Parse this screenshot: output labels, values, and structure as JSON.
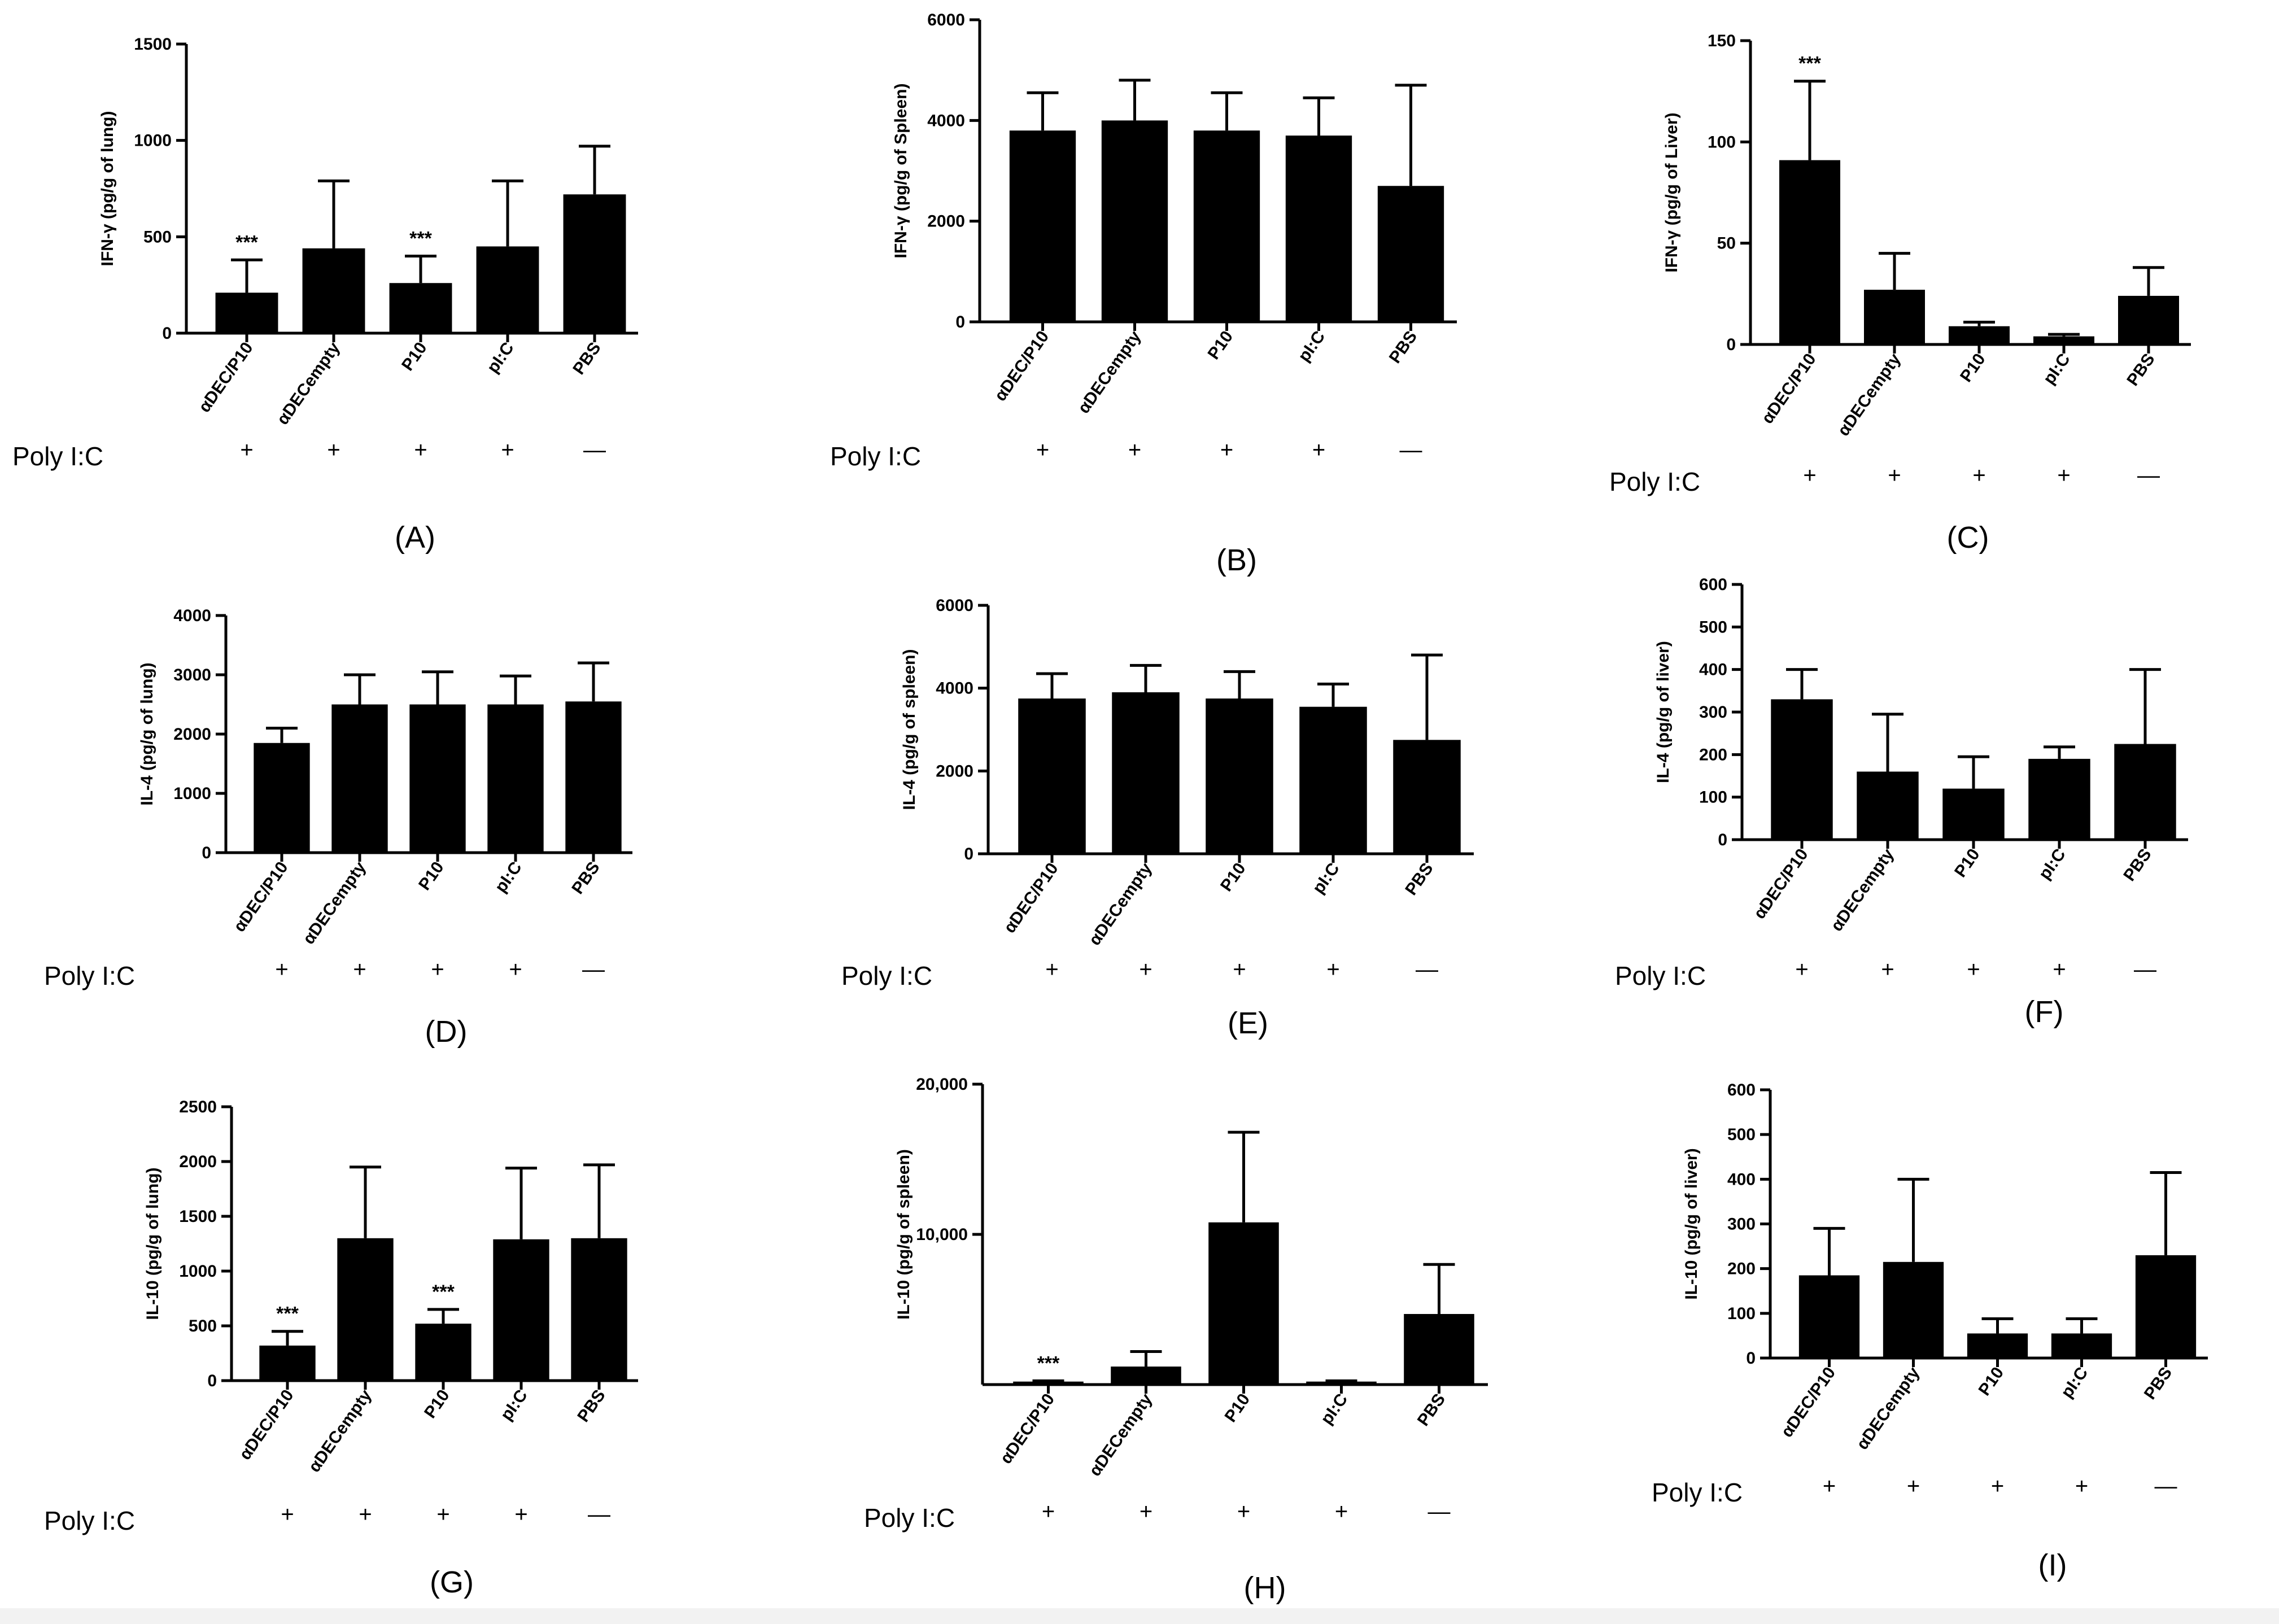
{
  "figure": {
    "poly_label": "Poly I:C",
    "panels": [
      {
        "panel_label": "(A)",
        "poly_signs": [
          "+",
          "+",
          "+",
          "+",
          "—"
        ],
        "chart_data": {
          "type": "bar",
          "title": "",
          "xlabel": "",
          "ylabel": "IFN-γ (pg/g of lung)",
          "categories": [
            "αDEC/P10",
            "αDECempty",
            "P10",
            "pI:C",
            "PBS"
          ],
          "values": [
            210,
            440,
            260,
            450,
            720
          ],
          "errors": [
            170,
            350,
            140,
            340,
            250
          ],
          "significance": [
            "***",
            "",
            "***",
            "",
            ""
          ],
          "ylim": [
            0,
            1500
          ],
          "yticks": [
            0,
            500,
            1000,
            1500
          ],
          "ytick_labels": [
            "0",
            "500",
            "1000",
            "1500"
          ]
        }
      },
      {
        "panel_label": "(B)",
        "poly_signs": [
          "+",
          "+",
          "+",
          "+",
          "—"
        ],
        "chart_data": {
          "type": "bar",
          "title": "",
          "xlabel": "",
          "ylabel": "IFN-γ (pg/g of Spleen)",
          "categories": [
            "αDEC/P10",
            "αDECempty",
            "P10",
            "pI:C",
            "PBS"
          ],
          "values": [
            3800,
            4000,
            3800,
            3700,
            2700
          ],
          "errors": [
            750,
            800,
            750,
            750,
            2000
          ],
          "significance": [
            "",
            "",
            "",
            "",
            ""
          ],
          "ylim": [
            0,
            6000
          ],
          "yticks": [
            0,
            2000,
            4000,
            6000
          ],
          "ytick_labels": [
            "0",
            "2000",
            "4000",
            "6000"
          ]
        }
      },
      {
        "panel_label": "(C)",
        "poly_signs": [
          "+",
          "+",
          "+",
          "+",
          "—"
        ],
        "chart_data": {
          "type": "bar",
          "title": "",
          "xlabel": "",
          "ylabel": "IFN-γ (pg/g of Liver)",
          "categories": [
            "αDEC/P10",
            "αDECempty",
            "P10",
            "pI:C",
            "PBS"
          ],
          "values": [
            91,
            27,
            9,
            4,
            24
          ],
          "errors": [
            39,
            18,
            2,
            1,
            14
          ],
          "significance": [
            "***",
            "",
            "",
            "",
            ""
          ],
          "ylim": [
            0,
            150
          ],
          "yticks": [
            0,
            50,
            100,
            150
          ],
          "ytick_labels": [
            "0",
            "50",
            "100",
            "150"
          ]
        }
      },
      {
        "panel_label": "(D)",
        "poly_signs": [
          "+",
          "+",
          "+",
          "+",
          "—"
        ],
        "chart_data": {
          "type": "bar",
          "title": "",
          "xlabel": "",
          "ylabel": "IL-4 (pg/g of lung)",
          "categories": [
            "αDEC/P10",
            "αDECempty",
            "P10",
            "pI:C",
            "PBS"
          ],
          "values": [
            1850,
            2500,
            2500,
            2500,
            2550
          ],
          "errors": [
            250,
            500,
            550,
            480,
            650
          ],
          "significance": [
            "",
            "",
            "",
            "",
            ""
          ],
          "ylim": [
            0,
            4000
          ],
          "yticks": [
            0,
            1000,
            2000,
            3000,
            4000
          ],
          "ytick_labels": [
            "0",
            "1000",
            "2000",
            "3000",
            "4000"
          ]
        }
      },
      {
        "panel_label": "(E)",
        "poly_signs": [
          "+",
          "+",
          "+",
          "+",
          "—"
        ],
        "chart_data": {
          "type": "bar",
          "title": "",
          "xlabel": "",
          "ylabel": "IL-4 (pg/g of spleen)",
          "categories": [
            "αDEC/P10",
            "αDECempty",
            "P10",
            "pI:C",
            "PBS"
          ],
          "values": [
            3750,
            3900,
            3750,
            3550,
            2750
          ],
          "errors": [
            600,
            650,
            650,
            550,
            2050
          ],
          "significance": [
            "",
            "",
            "",
            "",
            ""
          ],
          "ylim": [
            0,
            6000
          ],
          "yticks": [
            0,
            2000,
            4000,
            6000
          ],
          "ytick_labels": [
            "0",
            "2000",
            "4000",
            "6000"
          ]
        }
      },
      {
        "panel_label": "(F)",
        "poly_signs": [
          "+",
          "+",
          "+",
          "+",
          "—"
        ],
        "chart_data": {
          "type": "bar",
          "title": "",
          "xlabel": "",
          "ylabel": "IL-4 (pg/g of liver)",
          "categories": [
            "αDEC/P10",
            "αDECempty",
            "P10",
            "pI:C",
            "PBS"
          ],
          "values": [
            330,
            160,
            120,
            190,
            225
          ],
          "errors": [
            70,
            135,
            75,
            28,
            175
          ],
          "significance": [
            "",
            "",
            "",
            "",
            ""
          ],
          "ylim": [
            0,
            600
          ],
          "yticks": [
            0,
            100,
            200,
            300,
            400,
            500,
            600
          ],
          "ytick_labels": [
            "0",
            "100",
            "200",
            "300",
            "400",
            "500",
            "600"
          ]
        }
      },
      {
        "panel_label": "(G)",
        "poly_signs": [
          "+",
          "+",
          "+",
          "+",
          "—"
        ],
        "chart_data": {
          "type": "bar",
          "title": "",
          "xlabel": "",
          "ylabel": "IL-10 (pg/g of lung)",
          "categories": [
            "αDEC/P10",
            "αDECempty",
            "P10",
            "pI:C",
            "PBS"
          ],
          "values": [
            320,
            1300,
            520,
            1290,
            1300
          ],
          "errors": [
            130,
            650,
            130,
            650,
            670
          ],
          "significance": [
            "***",
            "",
            "***",
            "",
            ""
          ],
          "ylim": [
            0,
            2500
          ],
          "yticks": [
            0,
            500,
            1000,
            1500,
            2000,
            2500
          ],
          "ytick_labels": [
            "0",
            "500",
            "1000",
            "1500",
            "2000",
            "2500"
          ]
        }
      },
      {
        "panel_label": "(H)",
        "poly_signs": [
          "+",
          "+",
          "+",
          "+",
          "—"
        ],
        "chart_data": {
          "type": "bar",
          "title": "",
          "xlabel": "",
          "ylabel": "IL-10 (pg/g of spleen)",
          "categories": [
            "αDEC/P10",
            "αDECempty",
            "P10",
            "pI:C",
            "PBS"
          ],
          "values": [
            200,
            1200,
            10800,
            200,
            4700
          ],
          "errors": [
            50,
            1000,
            6000,
            50,
            3300
          ],
          "significance": [
            "***",
            "",
            "",
            "",
            ""
          ],
          "ylim": [
            0,
            20000
          ],
          "yticks": [
            10000,
            20000
          ],
          "ytick_labels": [
            "10,000",
            "20,000"
          ]
        }
      },
      {
        "panel_label": "(I)",
        "poly_signs": [
          "+",
          "+",
          "+",
          "+",
          "—"
        ],
        "chart_data": {
          "type": "bar",
          "title": "",
          "xlabel": "",
          "ylabel": "IL-10 (pg/g of liver)",
          "categories": [
            "αDEC/P10",
            "αDECempty",
            "P10",
            "pI:C",
            "PBS"
          ],
          "values": [
            185,
            215,
            55,
            55,
            230
          ],
          "errors": [
            105,
            185,
            33,
            33,
            185
          ],
          "significance": [
            "",
            "",
            "",
            "",
            ""
          ],
          "ylim": [
            0,
            600
          ],
          "yticks": [
            0,
            100,
            200,
            300,
            400,
            500,
            600
          ],
          "ytick_labels": [
            "0",
            "100",
            "200",
            "300",
            "400",
            "500",
            "600"
          ]
        }
      }
    ]
  }
}
